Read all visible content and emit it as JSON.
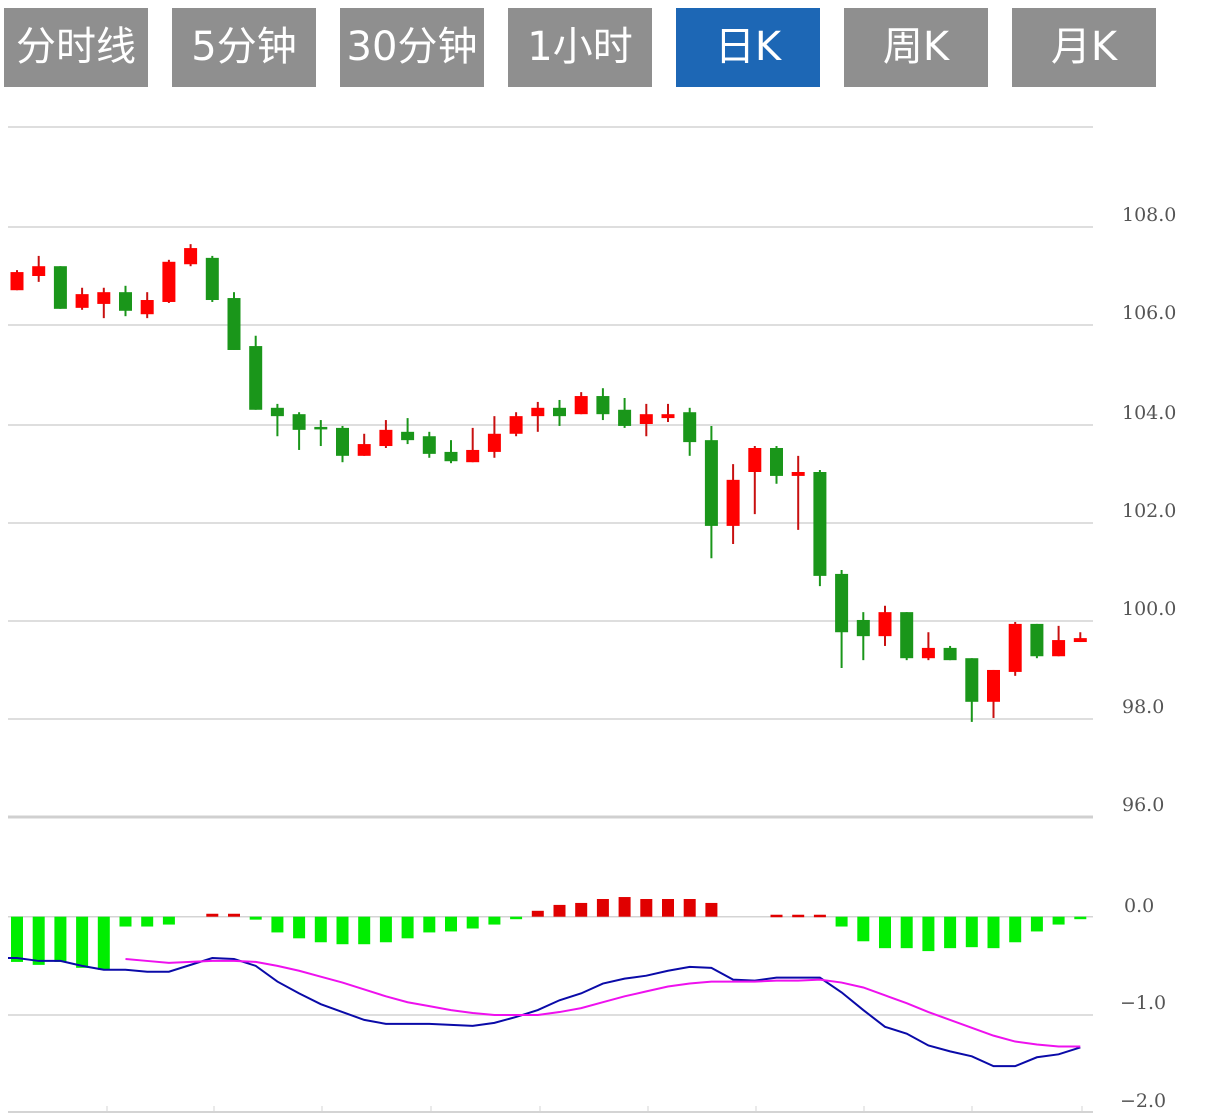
{
  "tabs": [
    {
      "label": "分时线",
      "active": false
    },
    {
      "label": "5分钟",
      "active": false
    },
    {
      "label": "30分钟",
      "active": false
    },
    {
      "label": "1小时",
      "active": false
    },
    {
      "label": "日K",
      "active": true
    },
    {
      "label": "周K",
      "active": false
    },
    {
      "label": "月K",
      "active": false
    }
  ],
  "colors": {
    "active_tab": "#1d67b5",
    "tab": "#8f8f8f",
    "up": "#ff0000",
    "down": "#1a961a",
    "hist_up": "#e00000",
    "hist_down": "#00ee00",
    "dif": "#0a0aa8",
    "dea": "#ee11ee"
  },
  "chart_data": [
    {
      "type": "candlestick",
      "ylim": [
        96,
        110
      ],
      "yticks": [
        "108.0",
        "106.0",
        "104.0",
        "102.0",
        "100.0",
        "98.0",
        "96.0"
      ],
      "grid": true,
      "ohlc": [
        [
          106.71,
          107.12,
          106.71,
          107.08
        ],
        [
          107.0,
          107.41,
          106.88,
          107.2
        ],
        [
          107.2,
          107.2,
          106.33,
          106.33
        ],
        [
          106.35,
          106.76,
          106.31,
          106.63
        ],
        [
          106.43,
          106.76,
          106.14,
          106.67
        ],
        [
          106.67,
          106.8,
          106.18,
          106.29
        ],
        [
          106.22,
          106.67,
          106.14,
          106.51
        ],
        [
          106.47,
          107.33,
          106.45,
          107.29
        ],
        [
          107.24,
          107.65,
          107.2,
          107.57
        ],
        [
          107.37,
          107.41,
          106.47,
          106.51
        ],
        [
          106.55,
          106.67,
          105.49,
          105.49
        ],
        [
          105.57,
          105.78,
          104.27,
          104.27
        ],
        [
          104.31,
          104.39,
          103.73,
          104.14
        ],
        [
          104.18,
          104.22,
          103.45,
          103.86
        ],
        [
          103.92,
          104.06,
          103.53,
          103.9
        ],
        [
          103.9,
          103.94,
          103.2,
          103.33
        ],
        [
          103.33,
          103.78,
          103.33,
          103.57
        ],
        [
          103.53,
          104.06,
          103.49,
          103.86
        ],
        [
          103.82,
          104.1,
          103.57,
          103.65
        ],
        [
          103.73,
          103.82,
          103.29,
          103.37
        ],
        [
          103.41,
          103.65,
          103.18,
          103.22
        ],
        [
          103.2,
          103.9,
          103.2,
          103.45
        ],
        [
          103.41,
          104.14,
          103.29,
          103.78
        ],
        [
          103.78,
          104.22,
          103.73,
          104.14
        ],
        [
          104.14,
          104.43,
          103.82,
          104.31
        ],
        [
          104.31,
          104.47,
          103.94,
          104.14
        ],
        [
          104.18,
          104.63,
          104.18,
          104.55
        ],
        [
          104.55,
          104.71,
          104.06,
          104.18
        ],
        [
          104.27,
          104.51,
          103.9,
          103.94
        ],
        [
          103.98,
          104.39,
          103.73,
          104.18
        ],
        [
          104.1,
          104.39,
          104.02,
          104.18
        ],
        [
          104.22,
          104.31,
          103.33,
          103.61
        ],
        [
          103.65,
          103.94,
          101.24,
          101.9
        ],
        [
          101.9,
          103.16,
          101.53,
          102.84
        ],
        [
          103.0,
          103.53,
          102.14,
          103.49
        ],
        [
          103.49,
          103.53,
          102.76,
          102.92
        ],
        [
          102.92,
          103.33,
          101.82,
          103.0
        ],
        [
          103.0,
          103.04,
          100.67,
          100.88
        ],
        [
          100.92,
          101.0,
          99.0,
          99.73
        ],
        [
          99.98,
          100.14,
          99.16,
          99.65
        ],
        [
          99.65,
          100.27,
          99.45,
          100.14
        ],
        [
          100.14,
          100.14,
          99.16,
          99.2
        ],
        [
          99.2,
          99.73,
          99.16,
          99.41
        ],
        [
          99.41,
          99.45,
          99.16,
          99.16
        ],
        [
          99.2,
          99.2,
          97.9,
          98.31
        ],
        [
          98.31,
          98.96,
          97.98,
          98.96
        ],
        [
          98.92,
          99.94,
          98.84,
          99.9
        ],
        [
          99.9,
          99.9,
          99.2,
          99.24
        ],
        [
          99.24,
          99.86,
          99.24,
          99.57
        ],
        [
          99.53,
          99.73,
          99.53,
          99.61
        ]
      ]
    },
    {
      "type": "macd",
      "ylim": [
        -2.0,
        0.2
      ],
      "yticks": [
        "0.0",
        "−1.0",
        "−2.0"
      ],
      "histogram": [
        -0.46,
        -0.49,
        -0.46,
        -0.52,
        -0.54,
        -0.1,
        -0.1,
        -0.08,
        0.0,
        0.03,
        0.03,
        -0.03,
        -0.16,
        -0.22,
        -0.26,
        -0.28,
        -0.28,
        -0.26,
        -0.22,
        -0.16,
        -0.15,
        -0.12,
        -0.08,
        -0.02,
        0.06,
        0.12,
        0.14,
        0.18,
        0.2,
        0.18,
        0.18,
        0.18,
        0.14,
        0.0,
        0.0,
        0.02,
        0.02,
        0.02,
        -0.1,
        -0.25,
        -0.32,
        -0.32,
        -0.35,
        -0.32,
        -0.31,
        -0.32,
        -0.26,
        -0.15,
        -0.08,
        -0.02
      ],
      "dif": [
        -0.42,
        -0.45,
        -0.45,
        -0.5,
        -0.54,
        -0.54,
        -0.56,
        -0.56,
        -0.49,
        -0.42,
        -0.43,
        -0.5,
        -0.66,
        -0.78,
        -0.89,
        -0.97,
        -1.05,
        -1.09,
        -1.09,
        -1.09,
        -1.1,
        -1.11,
        -1.08,
        -1.02,
        -0.95,
        -0.85,
        -0.78,
        -0.68,
        -0.63,
        -0.6,
        -0.55,
        -0.51,
        -0.52,
        -0.64,
        -0.65,
        -0.62,
        -0.62,
        -0.62,
        -0.77,
        -0.95,
        -1.12,
        -1.19,
        -1.31,
        -1.37,
        -1.42,
        -1.52,
        -1.52,
        -1.43,
        -1.4,
        -1.33
      ],
      "dea": [
        null,
        null,
        null,
        null,
        null,
        -0.43,
        -0.45,
        -0.47,
        -0.46,
        -0.45,
        -0.45,
        -0.46,
        -0.5,
        -0.55,
        -0.61,
        -0.67,
        -0.74,
        -0.81,
        -0.87,
        -0.91,
        -0.95,
        -0.98,
        -1.0,
        -1.0,
        -1.0,
        -0.97,
        -0.93,
        -0.87,
        -0.81,
        -0.76,
        -0.71,
        -0.68,
        -0.66,
        -0.66,
        -0.66,
        -0.65,
        -0.65,
        -0.64,
        -0.67,
        -0.72,
        -0.8,
        -0.88,
        -0.97,
        -1.05,
        -1.13,
        -1.21,
        -1.27,
        -1.3,
        -1.32,
        -1.32
      ]
    }
  ]
}
